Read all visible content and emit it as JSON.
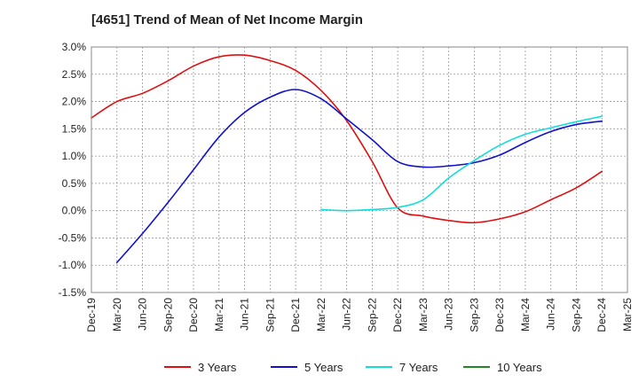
{
  "chart_data": {
    "type": "line",
    "title": "[4651]  Trend of Mean of Net Income Margin",
    "xlabel": "",
    "ylabel": "",
    "x_tick_labels": [
      "Dec-19",
      "Mar-20",
      "Jun-20",
      "Sep-20",
      "Dec-20",
      "Mar-21",
      "Jun-21",
      "Sep-21",
      "Dec-21",
      "Mar-22",
      "Jun-22",
      "Sep-22",
      "Dec-22",
      "Mar-23",
      "Jun-23",
      "Sep-23",
      "Dec-23",
      "Mar-24",
      "Jun-24",
      "Sep-24",
      "Dec-24",
      "Mar-25"
    ],
    "y_tick_labels": [
      "3.0%",
      "2.5%",
      "2.0%",
      "1.5%",
      "1.0%",
      "0.5%",
      "0.0%",
      "-0.5%",
      "-1.0%",
      "-1.5%"
    ],
    "ylim": [
      -1.5,
      3.0
    ],
    "y_ticks": [
      3.0,
      2.5,
      2.0,
      1.5,
      1.0,
      0.5,
      0.0,
      -0.5,
      -1.0,
      -1.5
    ],
    "grid": true,
    "legend_position": "bottom",
    "series": [
      {
        "name": "3 Years",
        "color": "#dd1111",
        "x": [
          "Dec-19",
          "Mar-20",
          "Jun-20",
          "Sep-20",
          "Dec-20",
          "Mar-21",
          "Jun-21",
          "Sep-21",
          "Dec-21",
          "Mar-22",
          "Jun-22",
          "Sep-22",
          "Dec-22",
          "Mar-23",
          "Jun-23",
          "Sep-23",
          "Dec-23",
          "Mar-24",
          "Jun-24",
          "Sep-24",
          "Dec-24"
        ],
        "values": [
          1.7,
          2.0,
          2.15,
          2.38,
          2.65,
          2.82,
          2.85,
          2.75,
          2.57,
          2.2,
          1.65,
          0.9,
          0.05,
          -0.1,
          -0.18,
          -0.22,
          -0.15,
          -0.02,
          0.2,
          0.42,
          0.72
        ]
      },
      {
        "name": "5 Years",
        "color": "#1111cc",
        "x": [
          "Mar-20",
          "Jun-20",
          "Sep-20",
          "Dec-20",
          "Mar-21",
          "Jun-21",
          "Sep-21",
          "Dec-21",
          "Mar-22",
          "Jun-22",
          "Sep-22",
          "Dec-22",
          "Mar-23",
          "Jun-23",
          "Sep-23",
          "Dec-23",
          "Mar-24",
          "Jun-24",
          "Sep-24",
          "Dec-24"
        ],
        "values": [
          -0.95,
          -0.42,
          0.15,
          0.75,
          1.35,
          1.8,
          2.08,
          2.22,
          2.05,
          1.68,
          1.3,
          0.9,
          0.8,
          0.82,
          0.88,
          1.02,
          1.25,
          1.45,
          1.58,
          1.64
        ]
      },
      {
        "name": "7 Years",
        "color": "#11dddd",
        "x": [
          "Mar-22",
          "Jun-22",
          "Sep-22",
          "Dec-22",
          "Mar-23",
          "Jun-23",
          "Sep-23",
          "Dec-23",
          "Mar-24",
          "Jun-24",
          "Sep-24",
          "Dec-24"
        ],
        "values": [
          0.02,
          0.0,
          0.02,
          0.06,
          0.2,
          0.6,
          0.92,
          1.2,
          1.4,
          1.52,
          1.63,
          1.73
        ]
      },
      {
        "name": "10 Years",
        "color": "#228822",
        "x": [],
        "values": []
      }
    ]
  }
}
